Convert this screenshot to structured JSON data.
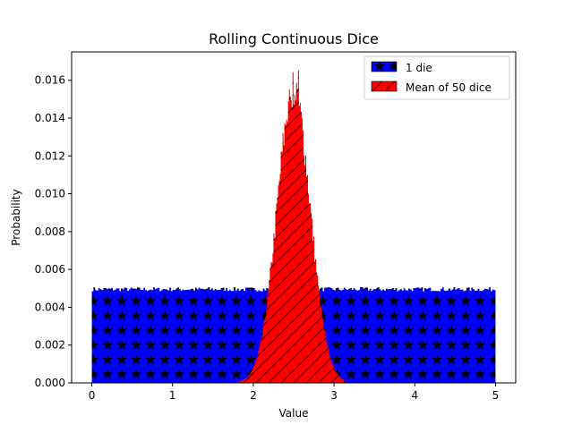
{
  "chart_data": {
    "type": "bar",
    "title": "Rolling Continuous Dice",
    "xlabel": "Value",
    "ylabel": "Probability",
    "xlim": [
      -0.25,
      5.25
    ],
    "ylim": [
      0,
      0.0175
    ],
    "x_ticks": [
      0,
      1,
      2,
      3,
      4,
      5
    ],
    "y_ticks": [
      0.0,
      0.002,
      0.004,
      0.006,
      0.008,
      0.01,
      0.012,
      0.014,
      0.016
    ],
    "y_tick_labels": [
      "0.000",
      "0.002",
      "0.004",
      "0.006",
      "0.008",
      "0.010",
      "0.012",
      "0.014",
      "0.016"
    ],
    "legend_position": "top-right",
    "series": [
      {
        "name": "1 die",
        "kind": "histogram",
        "color": "#0000ff",
        "hatch": "star",
        "bin_range": [
          0,
          5
        ],
        "bin_count": 250,
        "value_approx": 0.00495,
        "note_values": "uniform distribution, approx. 0.0049–0.0051 per bin"
      },
      {
        "name": "Mean of 50 dice",
        "kind": "histogram",
        "color": "#ff0000",
        "hatch": "diagonal",
        "mean": 2.5,
        "std": 0.205,
        "peak": 0.0166,
        "bin_range": [
          1.8,
          3.15
        ],
        "bin_count": 120
      }
    ]
  },
  "ui": {
    "legend": {
      "item1_label": "1 die",
      "item2_label": "Mean of 50 dice"
    }
  }
}
